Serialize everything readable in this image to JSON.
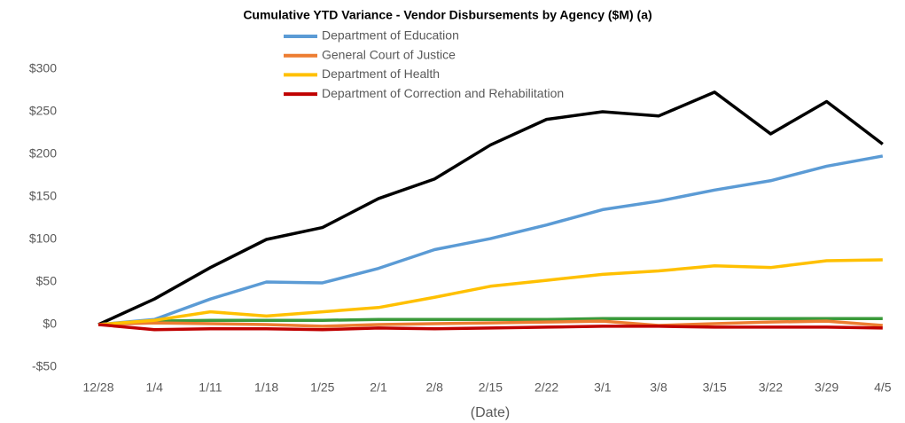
{
  "chart_data": {
    "type": "line",
    "title": "Cumulative YTD Variance - Vendor Disbursements by Agency ($M) (a)",
    "x_label": "(Date)",
    "categories": [
      "12/28",
      "1/4",
      "1/11",
      "1/18",
      "1/25",
      "2/1",
      "2/8",
      "2/15",
      "2/22",
      "3/1",
      "3/8",
      "3/15",
      "3/22",
      "3/29",
      "4/5"
    ],
    "series": [
      {
        "color": "#000000",
        "values": [
          0,
          30,
          67,
          100,
          114,
          148,
          171,
          211,
          241,
          250,
          245,
          273,
          224,
          262,
          212
        ]
      },
      {
        "color": "#3a9a3a",
        "values": [
          0,
          4,
          5,
          5,
          5,
          6,
          6,
          6,
          6,
          7,
          7,
          7,
          7,
          7,
          7
        ]
      },
      {
        "name": "Department of Education",
        "color": "#5b9bd5",
        "values": [
          0,
          6,
          30,
          50,
          49,
          66,
          88,
          101,
          117,
          135,
          145,
          158,
          169,
          186,
          198
        ]
      },
      {
        "name": "General Court of Justice",
        "color": "#ed7d31",
        "values": [
          0,
          2,
          1,
          0,
          -2,
          0,
          1,
          2,
          3,
          4,
          -1,
          1,
          3,
          4,
          -1
        ]
      },
      {
        "name": "Department of Health",
        "color": "#ffc000",
        "values": [
          0,
          5,
          15,
          10,
          15,
          20,
          32,
          45,
          52,
          59,
          63,
          69,
          67,
          75,
          76
        ]
      },
      {
        "name": "Department of Correction and Rehabilitation",
        "color": "#c00000",
        "values": [
          0,
          -6,
          -5,
          -5,
          -6,
          -4,
          -5,
          -4,
          -3,
          -2,
          -2,
          -3,
          -3,
          -3,
          -4
        ]
      }
    ],
    "ylim": [
      -50,
      300
    ],
    "yticks": [
      {
        "value": -50,
        "label": "-$50"
      },
      {
        "value": 0,
        "label": "$0"
      },
      {
        "value": 50,
        "label": "$50"
      },
      {
        "value": 100,
        "label": "$100"
      },
      {
        "value": 150,
        "label": "$150"
      },
      {
        "value": 200,
        "label": "$200"
      },
      {
        "value": 250,
        "label": "$250"
      },
      {
        "value": 300,
        "label": "$300"
      }
    ],
    "legend": "top"
  }
}
